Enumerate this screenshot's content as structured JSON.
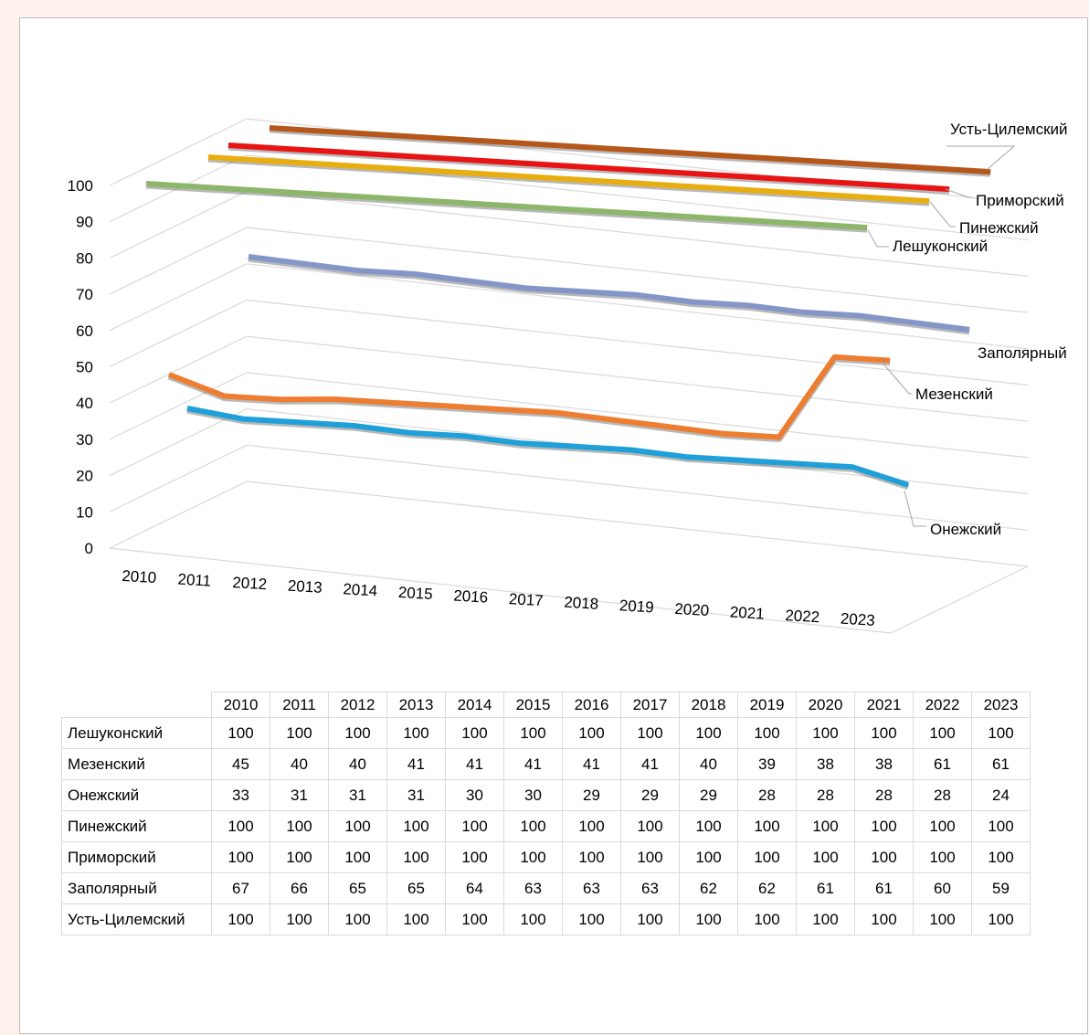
{
  "chart_data": {
    "type": "line",
    "subtype": "3d-line",
    "categories": [
      "2010",
      "2011",
      "2012",
      "2013",
      "2014",
      "2015",
      "2016",
      "2017",
      "2018",
      "2019",
      "2020",
      "2021",
      "2022",
      "2023"
    ],
    "y_ticks": [
      "0",
      "10",
      "20",
      "30",
      "40",
      "50",
      "60",
      "70",
      "80",
      "90",
      "100"
    ],
    "ylim": [
      0,
      100
    ],
    "grid": true,
    "legend": "series labels at line ends (right)",
    "series": [
      {
        "name": "Онежский",
        "color": "#1fa0d8",
        "values": [
          33,
          31,
          31,
          31,
          30,
          30,
          29,
          29,
          29,
          28,
          28,
          28,
          28,
          24
        ]
      },
      {
        "name": "Мезенский",
        "color": "#ed7d31",
        "values": [
          45,
          40,
          40,
          41,
          41,
          41,
          41,
          41,
          40,
          39,
          38,
          38,
          61,
          61
        ]
      },
      {
        "name": "Заполярный",
        "color": "#8496c8",
        "values": [
          67,
          66,
          65,
          65,
          64,
          63,
          63,
          63,
          62,
          62,
          61,
          61,
          60,
          59
        ]
      },
      {
        "name": "Лешуконский",
        "color": "#8cb66a",
        "values": [
          100,
          100,
          100,
          100,
          100,
          100,
          100,
          100,
          100,
          100,
          100,
          100,
          100,
          100
        ]
      },
      {
        "name": "Пинежский",
        "color": "#e8ae10",
        "values": [
          100,
          100,
          100,
          100,
          100,
          100,
          100,
          100,
          100,
          100,
          100,
          100,
          100,
          100
        ]
      },
      {
        "name": "Приморский",
        "color": "#e81414",
        "values": [
          100,
          100,
          100,
          100,
          100,
          100,
          100,
          100,
          100,
          100,
          100,
          100,
          100,
          100
        ]
      },
      {
        "name": "Усть-Цилемский",
        "color": "#b5561a",
        "values": [
          100,
          100,
          100,
          100,
          100,
          100,
          100,
          100,
          100,
          100,
          100,
          100,
          100,
          100
        ]
      }
    ],
    "table_row_order": [
      "Лешуконский",
      "Мезенский",
      "Онежский",
      "Пинежский",
      "Приморский",
      "Заполярный",
      "Усть-Цилемский"
    ]
  }
}
